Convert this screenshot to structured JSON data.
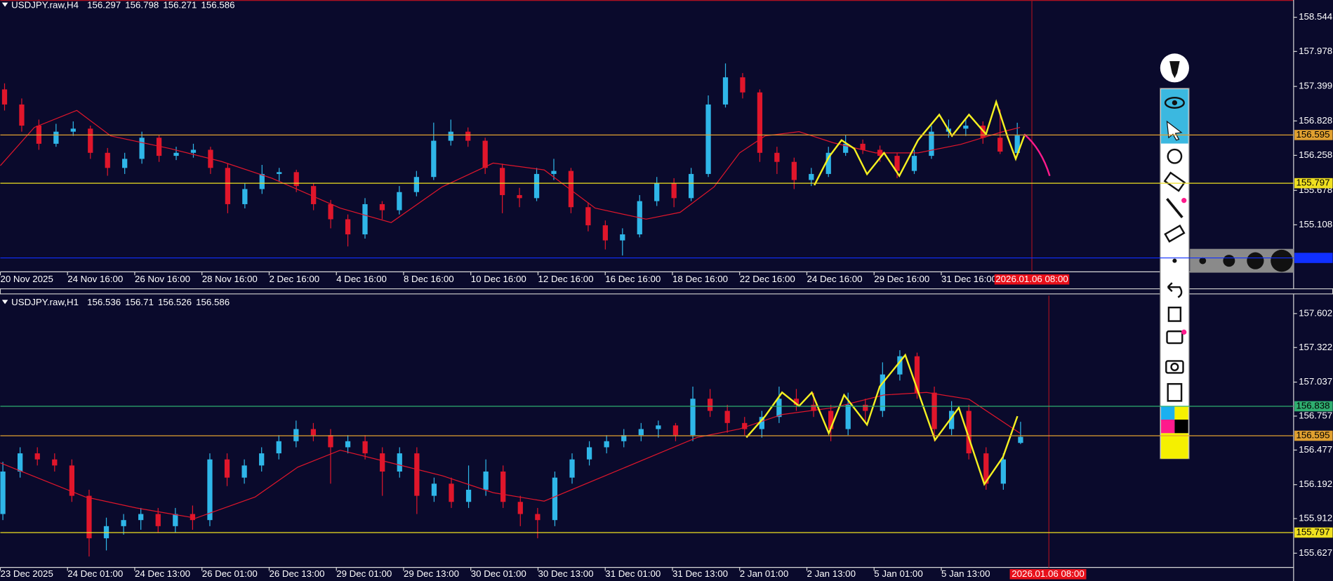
{
  "chart_data": [
    {
      "type": "candlestick",
      "title": "USDJPY.raw,H4",
      "up_color": "#2fb6e8",
      "down_color": "#e0162b",
      "ylim": [
        154.33,
        158.83
      ],
      "yticks": [
        158.544,
        157.978,
        157.399,
        156.828,
        156.258,
        155.678,
        155.108
      ],
      "xtick_labels": [
        "20 Nov 2025",
        "24 Nov 16:00",
        "26 Nov 16:00",
        "28 Nov 16:00",
        "2 Dec 16:00",
        "4 Dec 16:00",
        "8 Dec 16:00",
        "10 Dec 16:00",
        "12 Dec 16:00",
        "16 Dec 16:00",
        "18 Dec 16:00",
        "22 Dec 16:00",
        "24 Dec 16:00",
        "29 Dec 16:00",
        "31 Dec 16:00"
      ],
      "cursor_label": "2026.01.06 08:00",
      "levels": [
        {
          "value": 156.595,
          "color": "#e0a030"
        },
        {
          "value": 155.797,
          "color": "#f0e020"
        },
        {
          "value": 154.56,
          "color": "#1030ff",
          "label_hidden": true
        }
      ],
      "candles": [
        [
          157.35,
          157.45,
          157.0,
          157.1
        ],
        [
          157.1,
          157.2,
          156.65,
          156.75
        ],
        [
          156.75,
          156.85,
          156.35,
          156.45
        ],
        [
          156.45,
          156.78,
          156.4,
          156.65
        ],
        [
          156.65,
          156.82,
          156.58,
          156.7
        ],
        [
          156.7,
          156.75,
          156.2,
          156.3
        ],
        [
          156.3,
          156.38,
          155.92,
          156.05
        ],
        [
          156.05,
          156.3,
          155.95,
          156.2
        ],
        [
          156.2,
          156.65,
          156.12,
          156.55
        ],
        [
          156.55,
          156.6,
          156.15,
          156.25
        ],
        [
          156.25,
          156.4,
          156.18,
          156.3
        ],
        [
          156.3,
          156.45,
          156.22,
          156.35
        ],
        [
          156.35,
          156.4,
          155.95,
          156.05
        ],
        [
          156.05,
          156.12,
          155.3,
          155.45
        ],
        [
          155.45,
          155.8,
          155.38,
          155.7
        ],
        [
          155.7,
          156.1,
          155.62,
          155.95
        ],
        [
          155.95,
          156.05,
          155.82,
          155.98
        ],
        [
          155.98,
          156.02,
          155.65,
          155.75
        ],
        [
          155.75,
          155.8,
          155.35,
          155.45
        ],
        [
          155.45,
          155.52,
          155.05,
          155.2
        ],
        [
          155.2,
          155.28,
          154.75,
          154.95
        ],
        [
          154.95,
          155.55,
          154.88,
          155.45
        ],
        [
          155.45,
          155.5,
          155.2,
          155.35
        ],
        [
          155.35,
          155.75,
          155.28,
          155.65
        ],
        [
          155.65,
          156.0,
          155.58,
          155.9
        ],
        [
          155.9,
          156.8,
          155.85,
          156.5
        ],
        [
          156.5,
          156.85,
          156.42,
          156.65
        ],
        [
          156.65,
          156.72,
          156.4,
          156.5
        ],
        [
          156.5,
          156.55,
          155.95,
          156.05
        ],
        [
          156.05,
          156.12,
          155.3,
          155.6
        ],
        [
          155.6,
          155.72,
          155.4,
          155.55
        ],
        [
          155.55,
          156.05,
          155.5,
          155.95
        ],
        [
          155.95,
          156.2,
          155.85,
          156.0
        ],
        [
          156.0,
          156.05,
          155.3,
          155.4
        ],
        [
          155.4,
          155.48,
          155.0,
          155.1
        ],
        [
          155.1,
          155.18,
          154.7,
          154.85
        ],
        [
          154.85,
          155.05,
          154.6,
          154.95
        ],
        [
          154.95,
          155.6,
          154.9,
          155.5
        ],
        [
          155.5,
          155.9,
          155.42,
          155.8
        ],
        [
          155.8,
          155.88,
          155.4,
          155.55
        ],
        [
          155.55,
          156.05,
          155.5,
          155.95
        ],
        [
          155.95,
          157.25,
          155.9,
          157.1
        ],
        [
          157.1,
          157.78,
          157.05,
          157.55
        ],
        [
          157.55,
          157.62,
          157.2,
          157.3
        ],
        [
          157.3,
          157.35,
          156.15,
          156.3
        ],
        [
          156.3,
          156.4,
          155.95,
          156.15
        ],
        [
          156.15,
          156.22,
          155.7,
          155.85
        ],
        [
          155.85,
          156.05,
          155.75,
          155.95
        ],
        [
          155.95,
          156.4,
          155.9,
          156.3
        ],
        [
          156.3,
          156.6,
          156.25,
          156.45
        ],
        [
          156.45,
          156.52,
          156.28,
          156.35
        ],
        [
          156.35,
          156.42,
          156.15,
          156.25
        ],
        [
          156.25,
          156.3,
          155.88,
          156.0
        ],
        [
          156.0,
          156.35,
          155.95,
          156.25
        ],
        [
          156.25,
          156.75,
          156.2,
          156.65
        ],
        [
          156.65,
          156.85,
          156.55,
          156.7
        ],
        [
          156.7,
          156.88,
          156.58,
          156.75
        ],
        [
          156.75,
          156.82,
          156.45,
          156.55
        ],
        [
          156.55,
          157.02,
          156.28,
          156.32
        ],
        [
          156.297,
          156.798,
          156.271,
          156.586
        ]
      ]
    },
    {
      "type": "candlestick",
      "title": "USDJPY.raw,H1",
      "up_color": "#2fb6e8",
      "down_color": "#e0162b",
      "ylim": [
        155.51,
        157.75
      ],
      "yticks": [
        157.602,
        157.322,
        157.037,
        156.757,
        156.477,
        156.192,
        155.912,
        155.627
      ],
      "xtick_labels": [
        "23 Dec 2025",
        "24 Dec 01:00",
        "24 Dec 13:00",
        "26 Dec 01:00",
        "26 Dec 13:00",
        "29 Dec 01:00",
        "29 Dec 13:00",
        "30 Dec 01:00",
        "30 Dec 13:00",
        "31 Dec 01:00",
        "31 Dec 13:00",
        "2 Jan 01:00",
        "2 Jan 13:00",
        "5 Jan 01:00",
        "5 Jan 13:00"
      ],
      "cursor_label": "2026.01.06 08:00",
      "levels": [
        {
          "value": 156.838,
          "color": "#2fae70"
        },
        {
          "value": 156.595,
          "color": "#e0a030"
        },
        {
          "value": 155.797,
          "color": "#f0e020"
        }
      ],
      "candles": [
        [
          155.95,
          156.38,
          155.9,
          156.3
        ],
        [
          156.3,
          156.5,
          156.25,
          156.45
        ],
        [
          156.45,
          156.5,
          156.35,
          156.4
        ],
        [
          156.4,
          156.45,
          156.3,
          156.35
        ],
        [
          156.35,
          156.4,
          156.05,
          156.1
        ],
        [
          156.1,
          156.15,
          155.6,
          155.75
        ],
        [
          155.75,
          155.92,
          155.65,
          155.85
        ],
        [
          155.85,
          155.95,
          155.78,
          155.9
        ],
        [
          155.9,
          156.0,
          155.82,
          155.95
        ],
        [
          155.95,
          156.0,
          155.8,
          155.85
        ],
        [
          155.85,
          156.0,
          155.8,
          155.95
        ],
        [
          155.95,
          156.02,
          155.82,
          155.9
        ],
        [
          155.9,
          156.45,
          155.85,
          156.4
        ],
        [
          156.4,
          156.45,
          156.18,
          156.25
        ],
        [
          156.25,
          156.4,
          156.2,
          156.35
        ],
        [
          156.35,
          156.5,
          156.3,
          156.45
        ],
        [
          156.45,
          156.6,
          156.4,
          156.55
        ],
        [
          156.55,
          156.72,
          156.5,
          156.65
        ],
        [
          156.65,
          156.7,
          156.55,
          156.6
        ],
        [
          156.6,
          156.65,
          156.2,
          156.5
        ],
        [
          156.5,
          156.6,
          156.45,
          156.55
        ],
        [
          156.55,
          156.6,
          156.4,
          156.45
        ],
        [
          156.45,
          156.5,
          156.1,
          156.3
        ],
        [
          156.3,
          156.5,
          156.25,
          156.45
        ],
        [
          156.45,
          156.5,
          155.95,
          156.1
        ],
        [
          156.1,
          156.25,
          156.05,
          156.2
        ],
        [
          156.2,
          156.25,
          156.0,
          156.05
        ],
        [
          156.05,
          156.35,
          156.0,
          156.15
        ],
        [
          156.15,
          156.4,
          156.1,
          156.3
        ],
        [
          156.3,
          156.35,
          156.0,
          156.05
        ],
        [
          156.05,
          156.1,
          155.85,
          155.95
        ],
        [
          155.95,
          156.0,
          155.75,
          155.9
        ],
        [
          155.9,
          156.3,
          155.85,
          156.25
        ],
        [
          156.25,
          156.45,
          156.2,
          156.4
        ],
        [
          156.4,
          156.55,
          156.35,
          156.5
        ],
        [
          156.5,
          156.6,
          156.45,
          156.55
        ],
        [
          156.55,
          156.65,
          156.5,
          156.6
        ],
        [
          156.6,
          156.7,
          156.55,
          156.65
        ],
        [
          156.65,
          156.72,
          156.58,
          156.68
        ],
        [
          156.68,
          156.7,
          156.55,
          156.6
        ],
        [
          156.6,
          157.0,
          156.55,
          156.9
        ],
        [
          156.9,
          156.98,
          156.75,
          156.8
        ],
        [
          156.8,
          156.85,
          156.62,
          156.7
        ],
        [
          156.7,
          156.75,
          156.6,
          156.65
        ],
        [
          156.65,
          156.8,
          156.58,
          156.75
        ],
        [
          156.75,
          157.0,
          156.7,
          156.9
        ],
        [
          156.9,
          156.98,
          156.8,
          156.85
        ],
        [
          156.85,
          156.95,
          156.75,
          156.8
        ],
        [
          156.8,
          156.85,
          156.55,
          156.65
        ],
        [
          156.65,
          156.95,
          156.6,
          156.85
        ],
        [
          156.85,
          156.9,
          156.7,
          156.8
        ],
        [
          156.8,
          157.2,
          156.75,
          157.1
        ],
        [
          157.1,
          157.3,
          157.05,
          157.25
        ],
        [
          157.25,
          157.28,
          156.9,
          156.95
        ],
        [
          156.95,
          157.0,
          156.55,
          156.65
        ],
        [
          156.65,
          156.88,
          156.6,
          156.8
        ],
        [
          156.8,
          156.85,
          156.4,
          156.45
        ],
        [
          156.45,
          156.5,
          156.15,
          156.2
        ],
        [
          156.2,
          156.45,
          156.15,
          156.4
        ],
        [
          156.536,
          156.71,
          156.526,
          156.586
        ]
      ]
    }
  ]
}
